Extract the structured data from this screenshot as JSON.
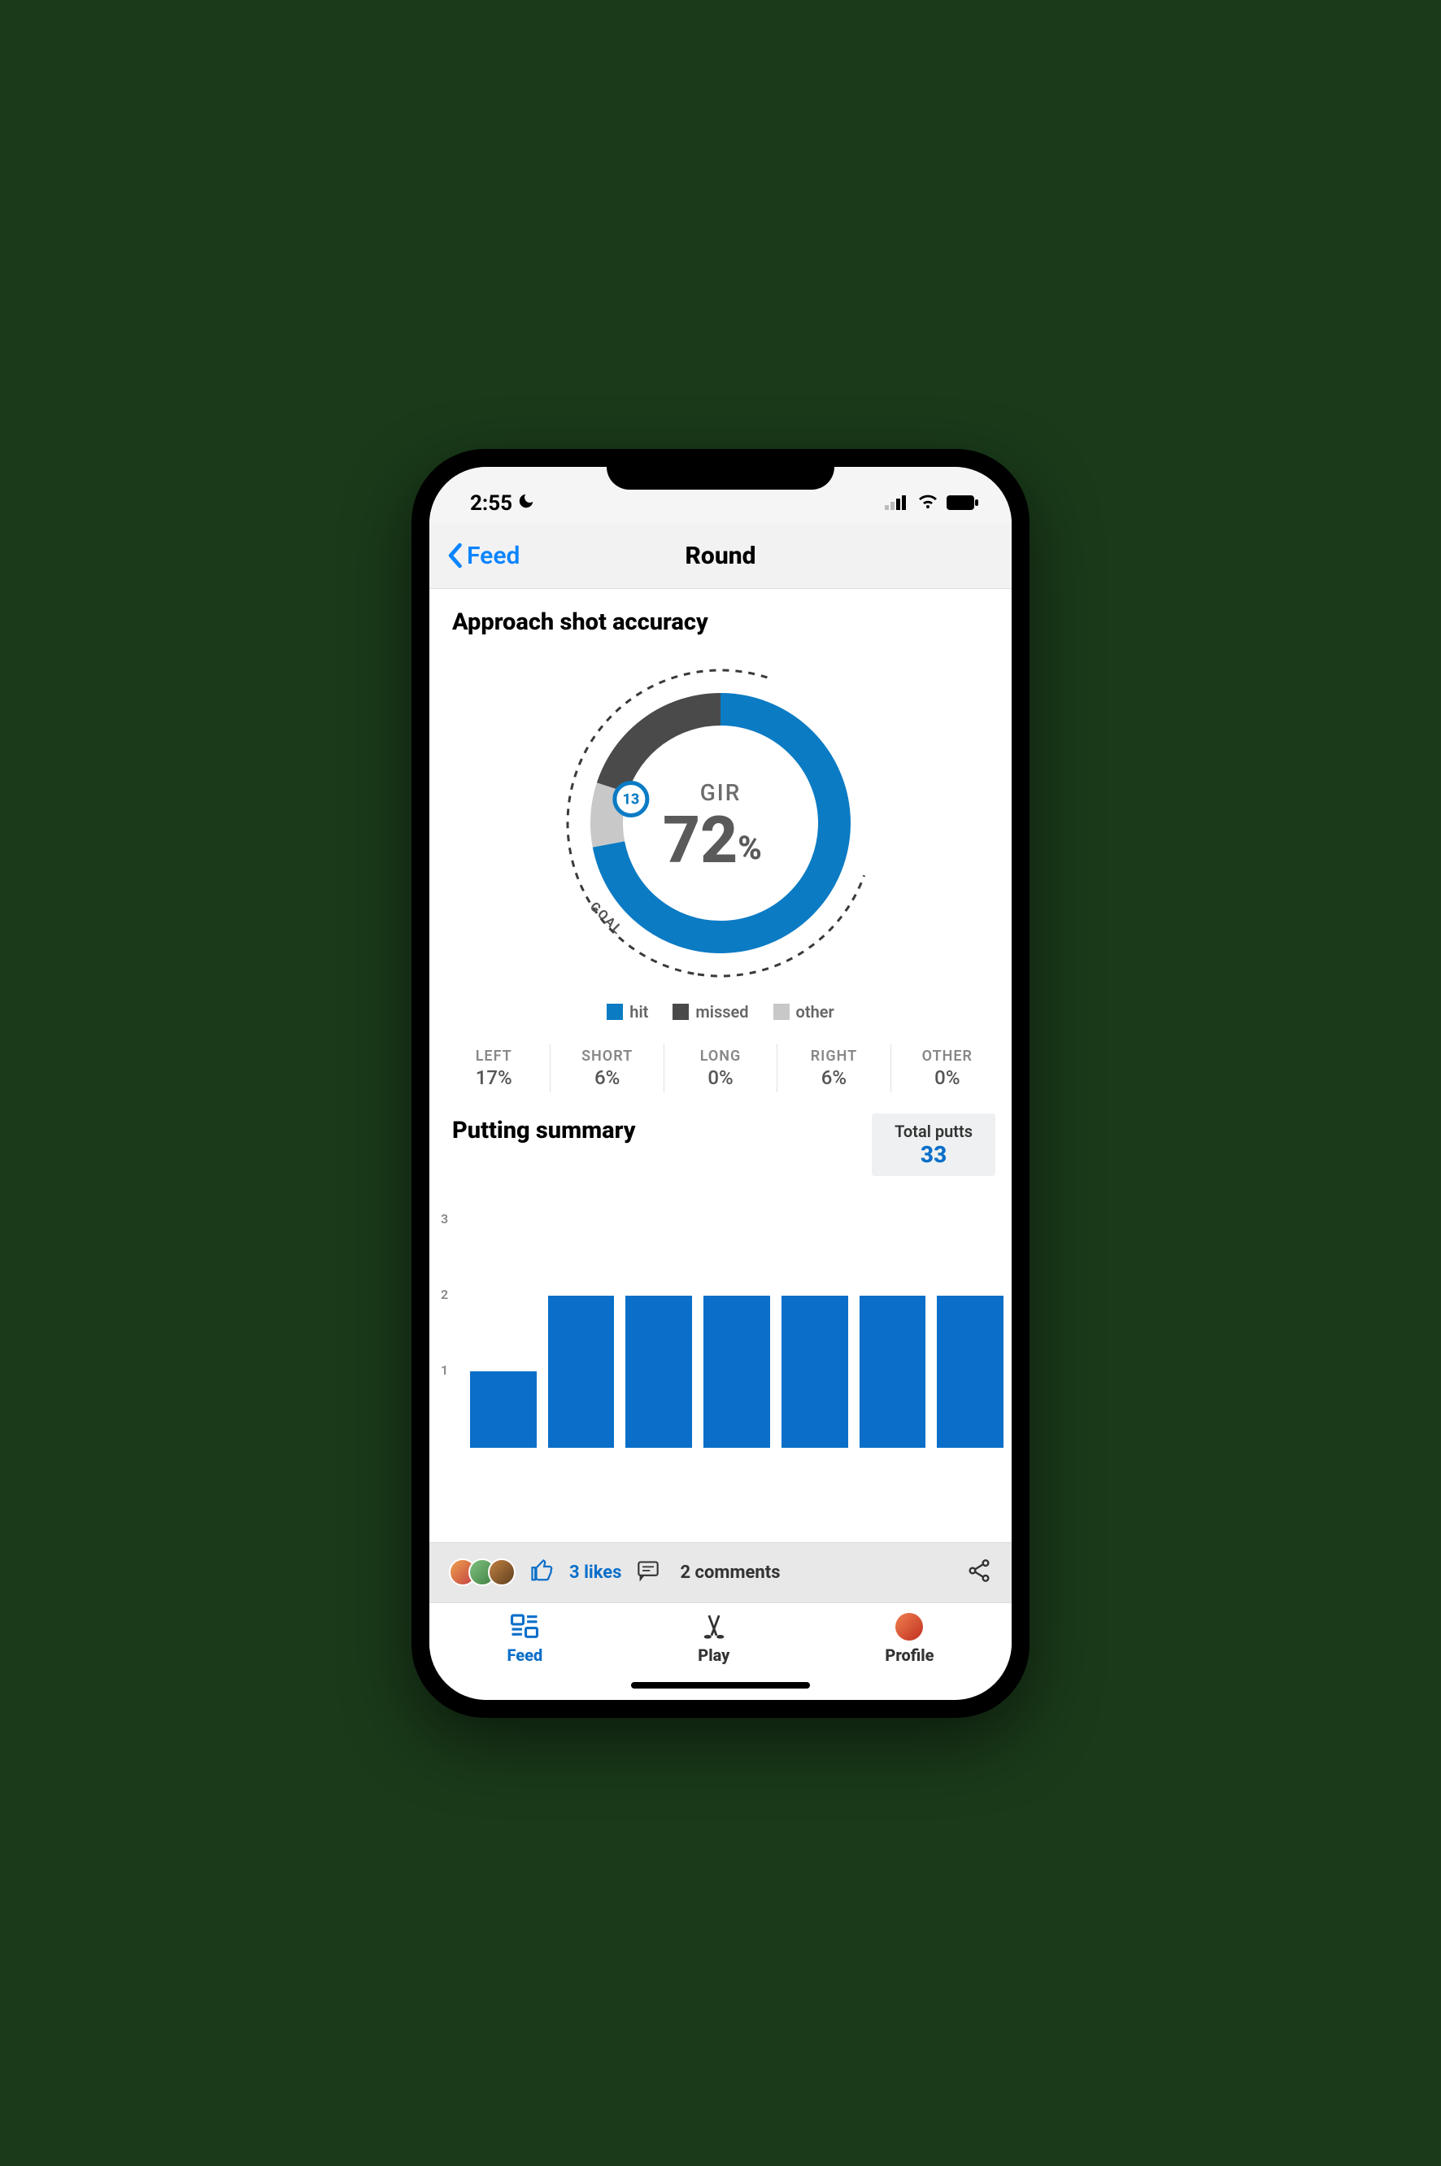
{
  "status": {
    "time": "2:55",
    "moon": "☾"
  },
  "nav": {
    "back_label": "Feed",
    "title": "Round"
  },
  "approach": {
    "title": "Approach shot accuracy",
    "center_label": "GIR",
    "center_value": "72",
    "center_pct": "%",
    "goal_label": "GOAL",
    "badge_value": "13",
    "donut": {
      "hit_pct": 72,
      "missed_pct": 20,
      "other_pct": 8,
      "goal_arc_pct": 80,
      "hit_color": "#0b7bc4",
      "missed_color": "#4a4a4a",
      "other_color": "#c8c8c8",
      "goal_dash_color": "#3a3a3a",
      "ring_width": 40
    },
    "legend": [
      {
        "label": "hit",
        "color": "#0b7bc4"
      },
      {
        "label": "missed",
        "color": "#4a4a4a"
      },
      {
        "label": "other",
        "color": "#c8c8c8"
      }
    ],
    "misses": [
      {
        "label": "LEFT",
        "value": "17%"
      },
      {
        "label": "SHORT",
        "value": "6%"
      },
      {
        "label": "LONG",
        "value": "0%"
      },
      {
        "label": "RIGHT",
        "value": "6%"
      },
      {
        "label": "OTHER",
        "value": "0%"
      }
    ]
  },
  "putting": {
    "title": "Putting summary",
    "total_label": "Total putts",
    "total_value": "33",
    "chart": {
      "type": "bar",
      "y_ticks": [
        1,
        2,
        3
      ],
      "y_max": 3,
      "values": [
        1,
        2,
        2,
        2,
        2,
        2,
        2
      ],
      "bar_color": "#0b6fc9",
      "background_color": "#ffffff",
      "tick_color": "#888888"
    }
  },
  "social": {
    "likes": "3 likes",
    "comments": "2 comments",
    "avatars_count": 3
  },
  "tabs": {
    "feed": "Feed",
    "play": "Play",
    "profile": "Profile",
    "active": "feed"
  },
  "colors": {
    "accent": "#0b6fc9",
    "ios_blue": "#0b84ff",
    "text_dark": "#000000",
    "text_gray": "#666666"
  }
}
